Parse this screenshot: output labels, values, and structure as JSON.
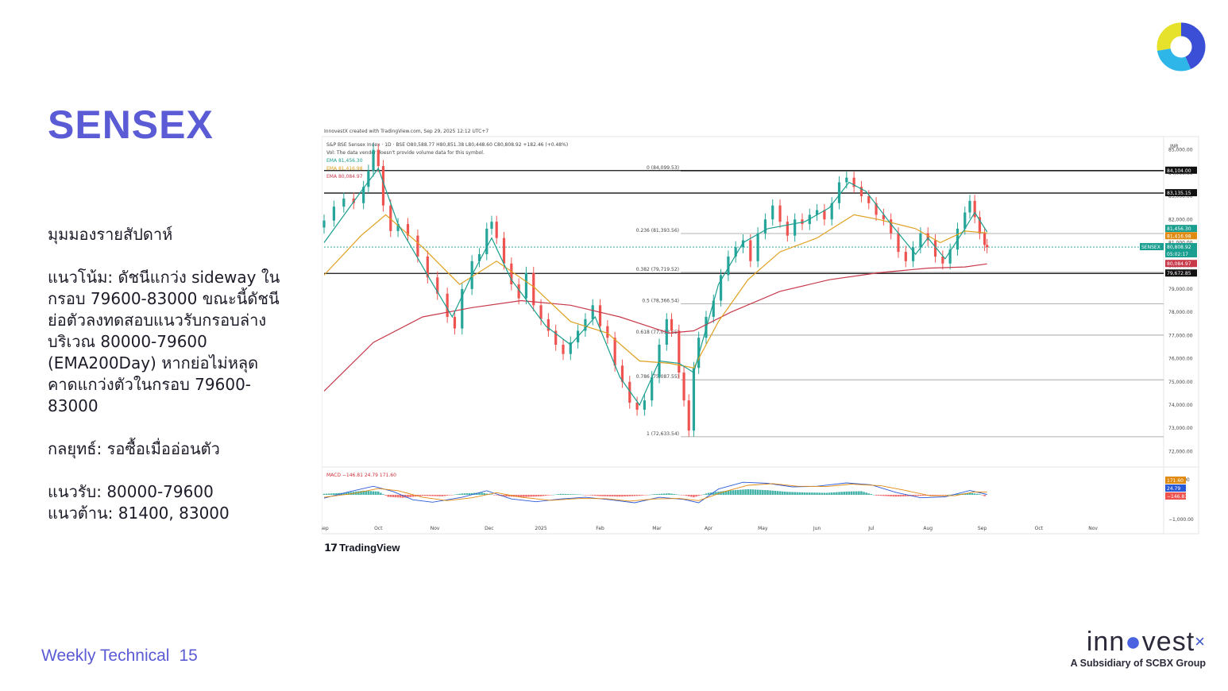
{
  "slide": {
    "title": "SENSEX",
    "paragraphs": [
      "มุมมองรายสัปดาห์",
      "แนวโน้ม: ดัชนีแกว่ง sideway ใน\nกรอบ 79600-83000 ขณะนี้ดัชนี\nย่อตัวลงทดสอบแนวรับกรอบล่าง\nบริเวณ 80000-79600\n(EMA200Day) หากย่อไม่หลุด\nคาดแกว่งตัวในกรอบ 79600-\n83000",
      "กลยุทธ์: รอซื้อเมื่ออ่อนตัว",
      "แนวรับ: 80000-79600\nแนวต้าน: 81400, 83000"
    ],
    "footer_label": "Weekly Technical",
    "page_number": "15",
    "brand_name_pre": "inn",
    "brand_name_post": "vest",
    "brand_tagline": "A Subsidiary of SCBX Group",
    "tradingview_label": "TradingView"
  },
  "chart_data": {
    "type": "candlestick",
    "header": "InnovestX created with TradingView.com, Sep 29, 2025 12:12 UTC+7",
    "symbol_line": "S&P BSE Sensex Index · 1D · BSE   O80,588.77 H80,851.38 L80,448.60 C80,808.92 +182.46 (+0.48%)",
    "volume_note": "Vol: The data vendor doesn't provide volume data for this symbol.",
    "currency": "INR",
    "ema_legend": [
      {
        "label": "EMA",
        "value": "81,456.30",
        "color": "#1a9e8f"
      },
      {
        "label": "EMA",
        "value": "81,416.98",
        "color": "#e0a020"
      },
      {
        "label": "EMA",
        "value": "80,084.97",
        "color": "#c8394a"
      }
    ],
    "ylim": [
      71500,
      85500
    ],
    "y_ticks": [
      "85,000.00",
      "84,000.00",
      "83,000.00",
      "82,000.00",
      "81,000.00",
      "80,000.00",
      "79,000.00",
      "78,000.00",
      "77,000.00",
      "76,000.00",
      "75,000.00",
      "74,000.00",
      "73,000.00",
      "72,000.00"
    ],
    "x_labels": [
      {
        "label": "Sep",
        "t": 0
      },
      {
        "label": "Oct",
        "t": 22
      },
      {
        "label": "Nov",
        "t": 45
      },
      {
        "label": "Dec",
        "t": 67
      },
      {
        "label": "2025",
        "t": 88
      },
      {
        "label": "Feb",
        "t": 112
      },
      {
        "label": "Mar",
        "t": 135
      },
      {
        "label": "Apr",
        "t": 156
      },
      {
        "label": "May",
        "t": 178
      },
      {
        "label": "Jun",
        "t": 200
      },
      {
        "label": "Jul",
        "t": 222
      },
      {
        "label": "Aug",
        "t": 245
      },
      {
        "label": "Sep",
        "t": 267
      },
      {
        "label": "Oct",
        "t": 290
      },
      {
        "label": "Nov",
        "t": 312
      }
    ],
    "t_max": 340,
    "horizontal_levels": [
      {
        "value": 84104,
        "label": "84,104.00",
        "style": "solid-dark"
      },
      {
        "value": 83135.15,
        "label": "83,135.15",
        "style": "solid-dark"
      },
      {
        "value": 79672.85,
        "label": "79,672.85",
        "style": "solid-dark"
      }
    ],
    "fib_levels": [
      {
        "ratio": "0",
        "value": 84099.53,
        "label": "0 (84,099.53)"
      },
      {
        "ratio": "0.236",
        "value": 81393.56,
        "label": "0.236 (81,393.56)"
      },
      {
        "ratio": "0.382",
        "value": 79719.52,
        "label": "0.382 (79,719.52)"
      },
      {
        "ratio": "0.5",
        "value": 78366.54,
        "label": "0.5 (78,366.54)"
      },
      {
        "ratio": "0.618",
        "value": 77013.55,
        "label": "0.618 (77,013.55)"
      },
      {
        "ratio": "0.786",
        "value": 75087.55,
        "label": "0.786 (75,087.55)"
      },
      {
        "ratio": "1",
        "value": 72633.54,
        "label": "1 (72,633.54)"
      }
    ],
    "price_badges": [
      {
        "value": 81456.3,
        "label": "81,456.30",
        "color": "#1a9e8f"
      },
      {
        "value": 81416.98,
        "label": "81,416.98",
        "color": "#e08a10"
      },
      {
        "value": 80808.92,
        "label": "80,808.92",
        "color": "#1a9e8f",
        "tag": "SENSEX",
        "sub": "05:02:17"
      },
      {
        "value": 80084.97,
        "label": "80,084.97",
        "color": "#c8394a"
      }
    ],
    "close_series": [
      [
        0,
        81950
      ],
      [
        4,
        82550
      ],
      [
        8,
        82900
      ],
      [
        12,
        82700
      ],
      [
        16,
        83400
      ],
      [
        18,
        84100
      ],
      [
        20,
        85000
      ],
      [
        22,
        84300
      ],
      [
        24,
        82600
      ],
      [
        27,
        81500
      ],
      [
        30,
        81800
      ],
      [
        34,
        81300
      ],
      [
        38,
        80400
      ],
      [
        42,
        79500
      ],
      [
        46,
        78800
      ],
      [
        50,
        77800
      ],
      [
        53,
        77300
      ],
      [
        56,
        79000
      ],
      [
        60,
        80200
      ],
      [
        63,
        80500
      ],
      [
        66,
        81600
      ],
      [
        68,
        81900
      ],
      [
        70,
        81200
      ],
      [
        73,
        80100
      ],
      [
        76,
        79200
      ],
      [
        79,
        78600
      ],
      [
        82,
        79700
      ],
      [
        85,
        78300
      ],
      [
        88,
        77700
      ],
      [
        91,
        77200
      ],
      [
        94,
        76600
      ],
      [
        97,
        76200
      ],
      [
        100,
        76700
      ],
      [
        103,
        77200
      ],
      [
        106,
        77700
      ],
      [
        109,
        78300
      ],
      [
        112,
        77400
      ],
      [
        115,
        76900
      ],
      [
        118,
        75700
      ],
      [
        121,
        75000
      ],
      [
        124,
        74100
      ],
      [
        127,
        73800
      ],
      [
        130,
        74200
      ],
      [
        133,
        75200
      ],
      [
        136,
        76600
      ],
      [
        139,
        77700
      ],
      [
        141,
        77200
      ],
      [
        144,
        75400
      ],
      [
        146,
        74200
      ],
      [
        148,
        72900
      ],
      [
        150,
        75600
      ],
      [
        152,
        76900
      ],
      [
        155,
        77800
      ],
      [
        158,
        78500
      ],
      [
        161,
        79600
      ],
      [
        164,
        80400
      ],
      [
        167,
        80800
      ],
      [
        170,
        81100
      ],
      [
        173,
        80200
      ],
      [
        176,
        81400
      ],
      [
        179,
        82000
      ],
      [
        182,
        82600
      ],
      [
        185,
        81900
      ],
      [
        188,
        81300
      ],
      [
        191,
        82000
      ],
      [
        194,
        81800
      ],
      [
        197,
        82200
      ],
      [
        200,
        82400
      ],
      [
        203,
        82000
      ],
      [
        206,
        82700
      ],
      [
        209,
        83600
      ],
      [
        212,
        83800
      ],
      [
        215,
        83400
      ],
      [
        218,
        83000
      ],
      [
        221,
        82700
      ],
      [
        224,
        82200
      ],
      [
        227,
        82000
      ],
      [
        230,
        81400
      ],
      [
        233,
        80600
      ],
      [
        236,
        80200
      ],
      [
        239,
        80800
      ],
      [
        242,
        81400
      ],
      [
        245,
        81100
      ],
      [
        248,
        80400
      ],
      [
        251,
        80100
      ],
      [
        254,
        80700
      ],
      [
        257,
        81600
      ],
      [
        260,
        82300
      ],
      [
        262,
        82800
      ],
      [
        264,
        82100
      ],
      [
        266,
        81400
      ],
      [
        268,
        80900
      ],
      [
        269,
        80800
      ]
    ],
    "ema_fast": [
      [
        0,
        81000
      ],
      [
        15,
        83200
      ],
      [
        22,
        84200
      ],
      [
        30,
        81800
      ],
      [
        42,
        79600
      ],
      [
        52,
        77800
      ],
      [
        60,
        79600
      ],
      [
        68,
        81200
      ],
      [
        76,
        79400
      ],
      [
        90,
        77400
      ],
      [
        100,
        76600
      ],
      [
        110,
        77800
      ],
      [
        120,
        75200
      ],
      [
        128,
        74000
      ],
      [
        136,
        75900
      ],
      [
        144,
        75800
      ],
      [
        150,
        75400
      ],
      [
        160,
        79200
      ],
      [
        170,
        81000
      ],
      [
        180,
        81600
      ],
      [
        195,
        81900
      ],
      [
        205,
        82500
      ],
      [
        213,
        83600
      ],
      [
        220,
        83200
      ],
      [
        230,
        81800
      ],
      [
        240,
        80500
      ],
      [
        245,
        81200
      ],
      [
        252,
        80300
      ],
      [
        260,
        81600
      ],
      [
        264,
        82300
      ],
      [
        269,
        81456
      ]
    ],
    "ema_mid": [
      [
        0,
        79600
      ],
      [
        15,
        81300
      ],
      [
        25,
        82200
      ],
      [
        40,
        80800
      ],
      [
        55,
        79200
      ],
      [
        70,
        80200
      ],
      [
        85,
        79100
      ],
      [
        100,
        77600
      ],
      [
        115,
        77100
      ],
      [
        128,
        75900
      ],
      [
        140,
        75800
      ],
      [
        150,
        75600
      ],
      [
        160,
        77600
      ],
      [
        172,
        79400
      ],
      [
        185,
        80600
      ],
      [
        200,
        81200
      ],
      [
        215,
        82200
      ],
      [
        225,
        82000
      ],
      [
        240,
        81600
      ],
      [
        250,
        81000
      ],
      [
        260,
        81500
      ],
      [
        269,
        81417
      ]
    ],
    "ema_slow": [
      [
        0,
        74600
      ],
      [
        20,
        76700
      ],
      [
        40,
        77800
      ],
      [
        60,
        78200
      ],
      [
        80,
        78500
      ],
      [
        100,
        78300
      ],
      [
        120,
        77800
      ],
      [
        140,
        77100
      ],
      [
        150,
        77200
      ],
      [
        165,
        78000
      ],
      [
        185,
        78900
      ],
      [
        205,
        79400
      ],
      [
        225,
        79700
      ],
      [
        245,
        79900
      ],
      [
        260,
        79950
      ],
      [
        269,
        80085
      ]
    ],
    "macd": {
      "label": "MACD",
      "values": [
        "−146.81",
        "24.79",
        "171.60"
      ],
      "y_ticks": [
        "1,000.00",
        "−1,000.00"
      ],
      "badges": [
        "171.60",
        "24.79",
        "−146.81"
      ],
      "histogram": [
        [
          0,
          60
        ],
        [
          8,
          120
        ],
        [
          16,
          250
        ],
        [
          22,
          200
        ],
        [
          26,
          -120
        ],
        [
          32,
          -180
        ],
        [
          40,
          -60
        ],
        [
          48,
          -90
        ],
        [
          56,
          80
        ],
        [
          64,
          130
        ],
        [
          72,
          -80
        ],
        [
          80,
          -140
        ],
        [
          88,
          -90
        ],
        [
          96,
          60
        ],
        [
          104,
          20
        ],
        [
          112,
          -80
        ],
        [
          120,
          -110
        ],
        [
          128,
          -60
        ],
        [
          134,
          40
        ],
        [
          140,
          90
        ],
        [
          146,
          -30
        ],
        [
          150,
          -150
        ],
        [
          156,
          120
        ],
        [
          164,
          260
        ],
        [
          172,
          340
        ],
        [
          180,
          280
        ],
        [
          188,
          180
        ],
        [
          196,
          140
        ],
        [
          204,
          120
        ],
        [
          212,
          200
        ],
        [
          218,
          220
        ],
        [
          224,
          -40
        ],
        [
          232,
          -110
        ],
        [
          240,
          -70
        ],
        [
          248,
          -40
        ],
        [
          256,
          30
        ],
        [
          262,
          120
        ],
        [
          266,
          40
        ],
        [
          269,
          -140
        ]
      ],
      "macd_line": [
        [
          0,
          -200
        ],
        [
          10,
          180
        ],
        [
          20,
          520
        ],
        [
          28,
          200
        ],
        [
          36,
          -300
        ],
        [
          44,
          -450
        ],
        [
          56,
          -150
        ],
        [
          66,
          250
        ],
        [
          76,
          -250
        ],
        [
          86,
          -420
        ],
        [
          96,
          -250
        ],
        [
          106,
          -150
        ],
        [
          116,
          -300
        ],
        [
          126,
          -480
        ],
        [
          136,
          -150
        ],
        [
          146,
          -280
        ],
        [
          152,
          -480
        ],
        [
          160,
          350
        ],
        [
          170,
          760
        ],
        [
          180,
          700
        ],
        [
          190,
          480
        ],
        [
          200,
          520
        ],
        [
          212,
          720
        ],
        [
          222,
          600
        ],
        [
          232,
          150
        ],
        [
          242,
          -180
        ],
        [
          252,
          -120
        ],
        [
          262,
          260
        ],
        [
          269,
          25
        ]
      ],
      "signal_line": [
        [
          0,
          -150
        ],
        [
          12,
          80
        ],
        [
          22,
          380
        ],
        [
          30,
          250
        ],
        [
          40,
          -150
        ],
        [
          50,
          -350
        ],
        [
          60,
          -180
        ],
        [
          70,
          130
        ],
        [
          80,
          -150
        ],
        [
          92,
          -330
        ],
        [
          104,
          -220
        ],
        [
          114,
          -230
        ],
        [
          124,
          -380
        ],
        [
          134,
          -250
        ],
        [
          144,
          -220
        ],
        [
          152,
          -350
        ],
        [
          162,
          180
        ],
        [
          172,
          580
        ],
        [
          182,
          680
        ],
        [
          192,
          520
        ],
        [
          204,
          500
        ],
        [
          214,
          650
        ],
        [
          226,
          550
        ],
        [
          236,
          260
        ],
        [
          246,
          -60
        ],
        [
          256,
          -50
        ],
        [
          264,
          180
        ],
        [
          269,
          172
        ]
      ]
    }
  }
}
